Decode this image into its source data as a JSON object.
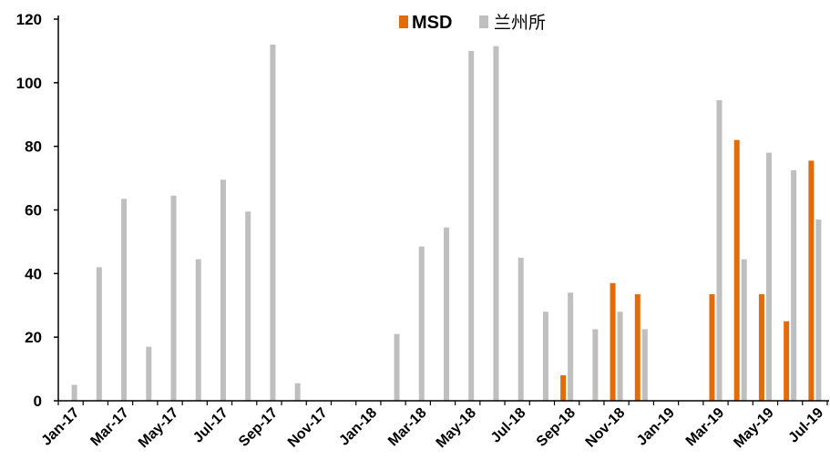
{
  "chart_data": {
    "type": "bar",
    "title": "",
    "xlabel": "",
    "ylabel": "",
    "ylim": [
      0,
      120
    ],
    "yticks": [
      0,
      20,
      40,
      60,
      80,
      100,
      120
    ],
    "legend_position": "top-center",
    "grid": false,
    "categories": [
      "Jan-17",
      "Feb-17",
      "Mar-17",
      "Apr-17",
      "May-17",
      "Jun-17",
      "Jul-17",
      "Aug-17",
      "Sep-17",
      "Oct-17",
      "Nov-17",
      "Dec-17",
      "Jan-18",
      "Feb-18",
      "Mar-18",
      "Apr-18",
      "May-18",
      "Jun-18",
      "Jul-18",
      "Aug-18",
      "Sep-18",
      "Oct-18",
      "Nov-18",
      "Dec-18",
      "Jan-19",
      "Feb-19",
      "Mar-19",
      "Apr-19",
      "May-19",
      "Jun-19",
      "Jul-19"
    ],
    "x_tick_labels": [
      "Jan-17",
      "Mar-17",
      "May-17",
      "Jul-17",
      "Sep-17",
      "Nov-17",
      "Jan-18",
      "Mar-18",
      "May-18",
      "Jul-18",
      "Sep-18",
      "Nov-18",
      "Jan-19",
      "Mar-19",
      "May-19",
      "Jul-19"
    ],
    "series": [
      {
        "name": "MSD",
        "color": "#E36C0A",
        "values": [
          0,
          0,
          0,
          0,
          0,
          0,
          0,
          0,
          0,
          0,
          0,
          0,
          0,
          0,
          0,
          0,
          0,
          0,
          0,
          0,
          8,
          0,
          37,
          33.5,
          0,
          0,
          33.5,
          82,
          33.5,
          25,
          75.5
        ]
      },
      {
        "name": "兰州所",
        "color": "#BFBFBF",
        "values": [
          5,
          42,
          63.5,
          17,
          64.5,
          44.5,
          69.5,
          59.5,
          112,
          5.5,
          0,
          0,
          0,
          21,
          48.5,
          54.5,
          110,
          111.5,
          45,
          28,
          34,
          22.5,
          28,
          22.5,
          0,
          0,
          94.5,
          44.5,
          78,
          72.5,
          57
        ]
      }
    ]
  }
}
